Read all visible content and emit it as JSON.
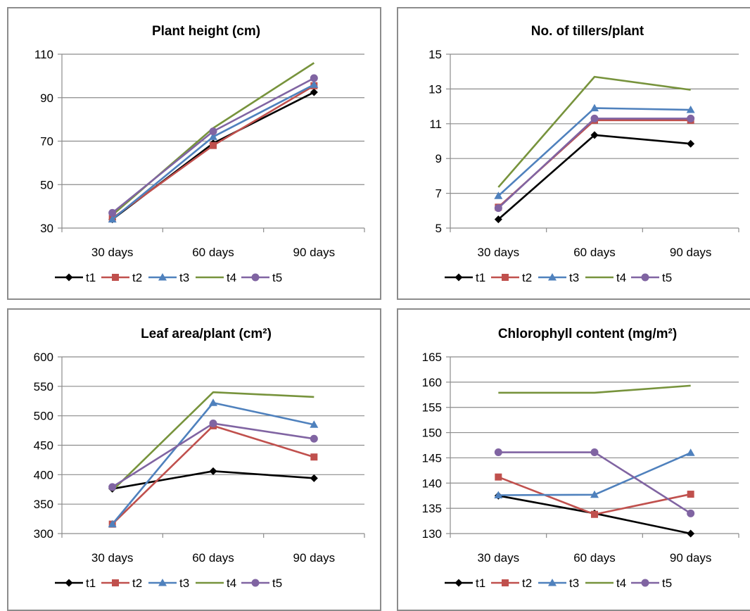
{
  "chart_data": [
    {
      "type": "line",
      "title": "Plant height (cm)",
      "categories": [
        "30 days",
        "60 days",
        "90 days"
      ],
      "ylim": [
        30,
        110
      ],
      "yticks": [
        30,
        50,
        70,
        90,
        110
      ],
      "series": [
        {
          "name": "t1",
          "values": [
            34,
            69,
            92.5
          ]
        },
        {
          "name": "t2",
          "values": [
            34.5,
            68,
            95.5
          ]
        },
        {
          "name": "t3",
          "values": [
            34,
            72,
            96
          ]
        },
        {
          "name": "t4",
          "values": [
            36,
            76,
            106
          ]
        },
        {
          "name": "t5",
          "values": [
            37,
            74.5,
            99
          ]
        }
      ]
    },
    {
      "type": "line",
      "title": "No. of tillers/plant",
      "categories": [
        "30 days",
        "60 days",
        "90 days"
      ],
      "ylim": [
        5,
        15
      ],
      "yticks": [
        5,
        7,
        9,
        11,
        13,
        15
      ],
      "series": [
        {
          "name": "t1",
          "values": [
            5.5,
            10.35,
            9.85
          ]
        },
        {
          "name": "t2",
          "values": [
            6.2,
            11.2,
            11.2
          ]
        },
        {
          "name": "t3",
          "values": [
            6.85,
            11.9,
            11.8
          ]
        },
        {
          "name": "t4",
          "values": [
            7.35,
            13.7,
            12.95
          ]
        },
        {
          "name": "t5",
          "values": [
            6.15,
            11.3,
            11.3
          ]
        }
      ]
    },
    {
      "type": "line",
      "title": "Leaf area/plant (cm²)",
      "categories": [
        "30 days",
        "60 days",
        "90 days"
      ],
      "ylim": [
        300,
        600
      ],
      "yticks": [
        300,
        350,
        400,
        450,
        500,
        550,
        600
      ],
      "series": [
        {
          "name": "t1",
          "values": [
            376,
            406,
            394
          ]
        },
        {
          "name": "t2",
          "values": [
            316,
            483,
            430
          ]
        },
        {
          "name": "t3",
          "values": [
            316,
            522,
            485
          ]
        },
        {
          "name": "t4",
          "values": [
            373,
            540,
            532
          ]
        },
        {
          "name": "t5",
          "values": [
            379,
            487,
            461
          ]
        }
      ]
    },
    {
      "type": "line",
      "title": "Chlorophyll content (mg/m²)",
      "categories": [
        "30 days",
        "60 days",
        "90 days"
      ],
      "ylim": [
        130,
        165
      ],
      "yticks": [
        130,
        135,
        140,
        145,
        150,
        155,
        160,
        165
      ],
      "series": [
        {
          "name": "t1",
          "values": [
            137.5,
            134,
            130
          ]
        },
        {
          "name": "t2",
          "values": [
            141.2,
            133.8,
            137.8
          ]
        },
        {
          "name": "t3",
          "values": [
            137.6,
            137.7,
            146
          ]
        },
        {
          "name": "t4",
          "values": [
            157.9,
            157.9,
            159.3
          ]
        },
        {
          "name": "t5",
          "values": [
            146.1,
            146.1,
            134
          ]
        }
      ]
    }
  ],
  "series_styles": {
    "t1": {
      "color": "#000000",
      "marker": "diamond"
    },
    "t2": {
      "color": "#c0504d",
      "marker": "square"
    },
    "t3": {
      "color": "#4f81bd",
      "marker": "triangle"
    },
    "t4": {
      "color": "#77933c",
      "marker": "none"
    },
    "t5": {
      "color": "#8064a2",
      "marker": "circle"
    }
  }
}
